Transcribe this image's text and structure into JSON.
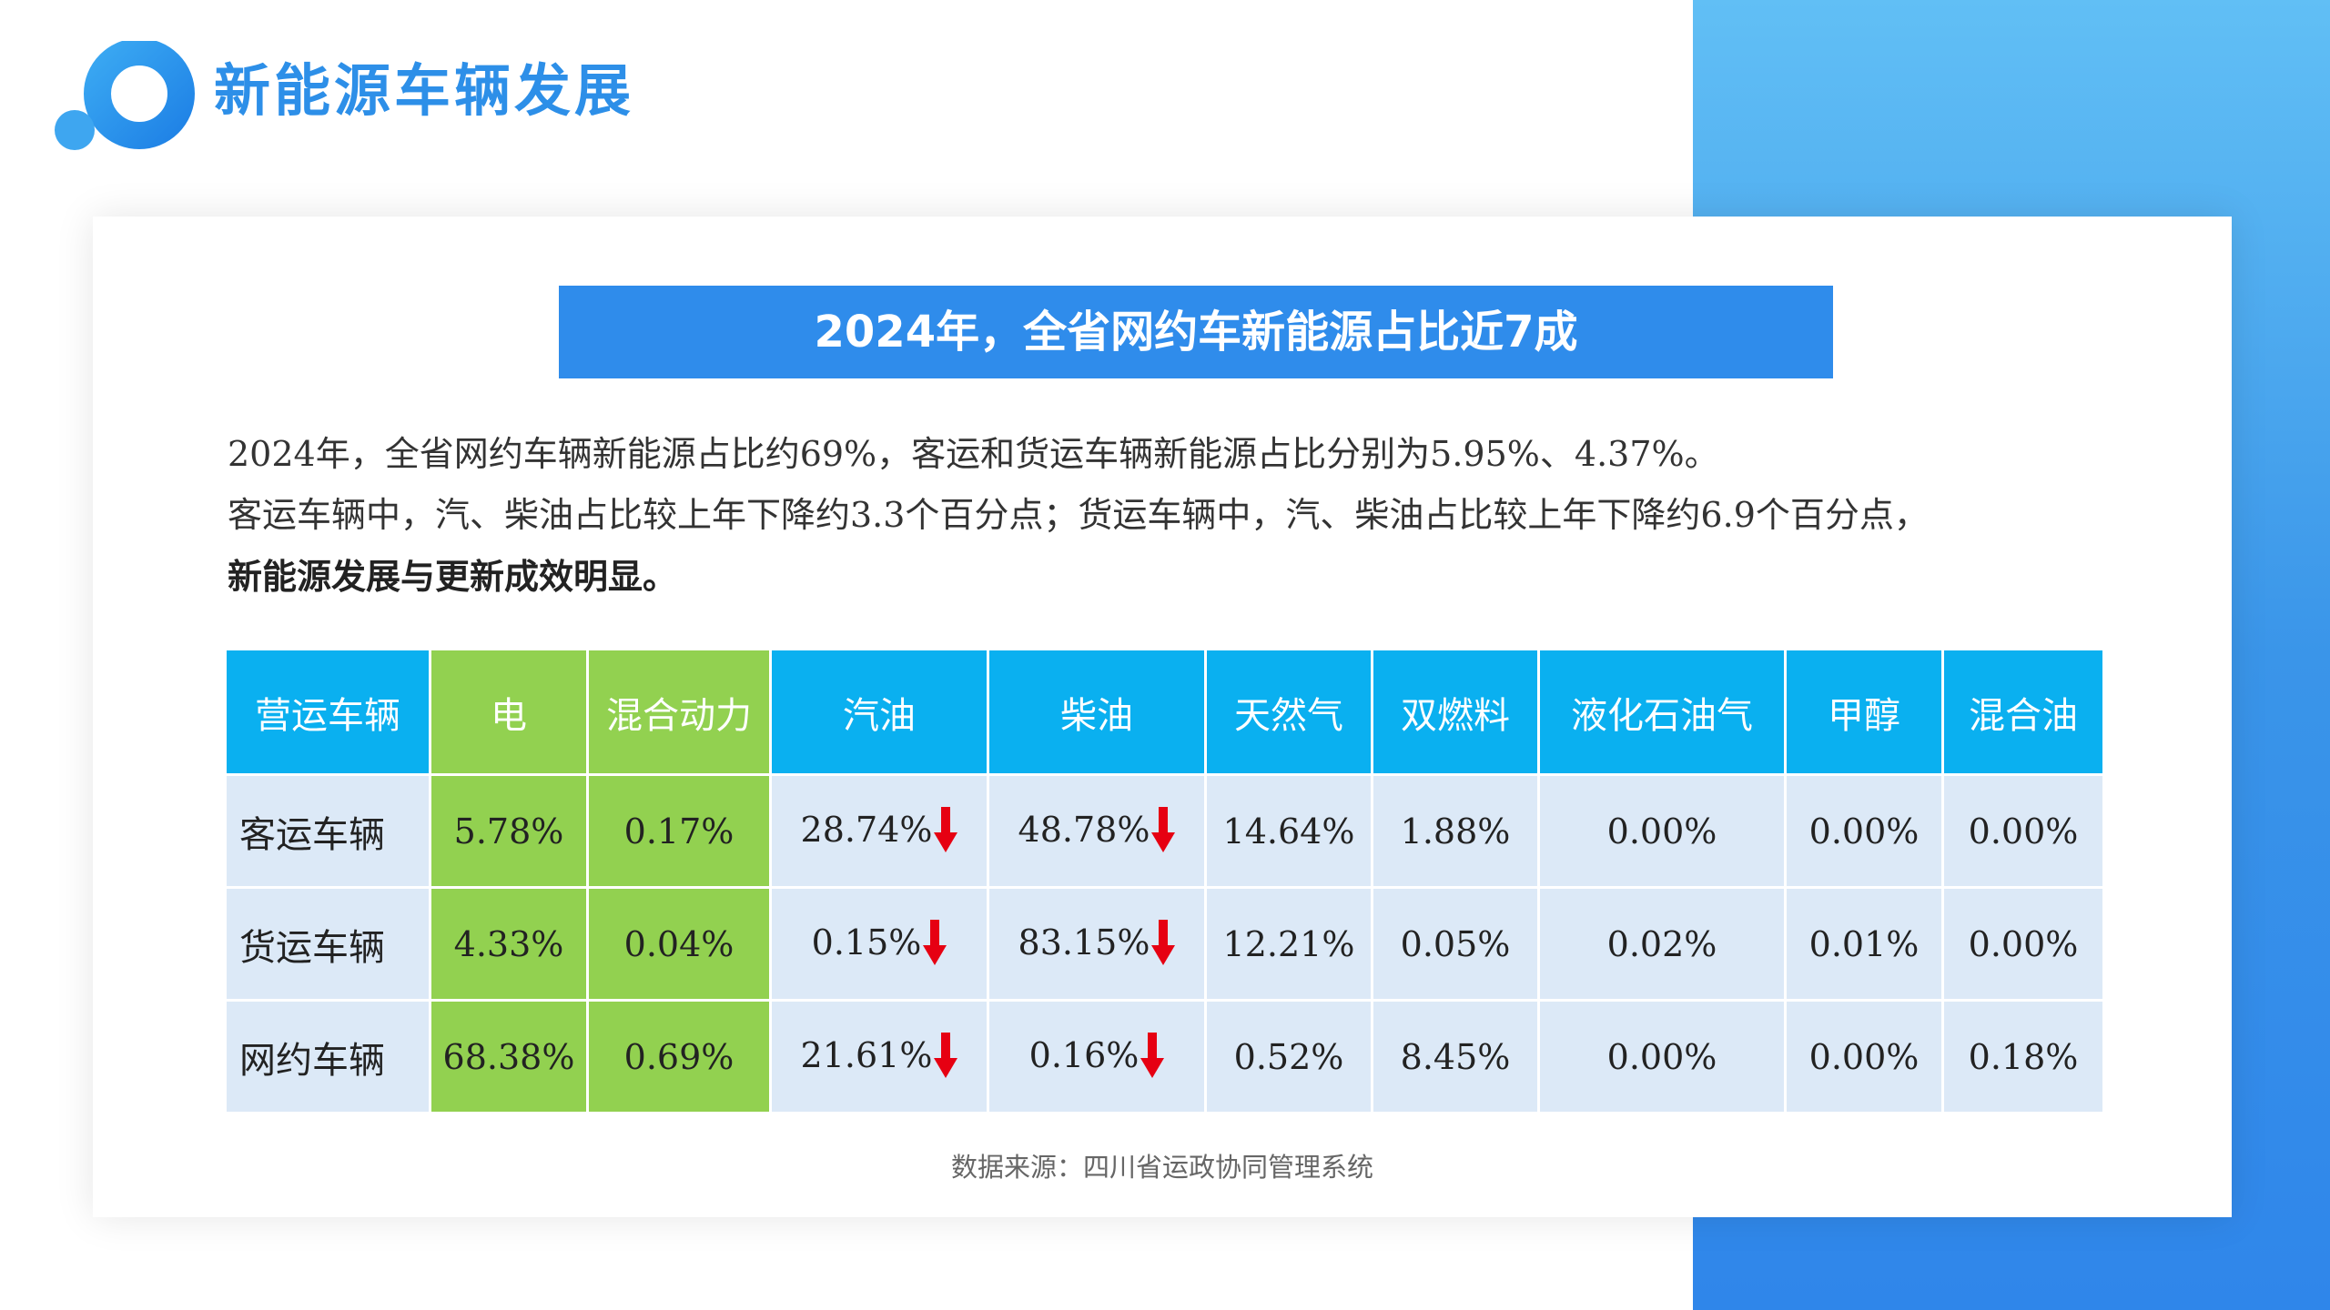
{
  "header": {
    "title": "新能源车辆发展"
  },
  "banner": {
    "text": "2024年，全省网约车新能源占比近7成"
  },
  "intro": {
    "line1": "2024年，全省网约车辆新能源占比约69%，客运和货运车辆新能源占比分别为5.95%、4.37%。",
    "line2": "客运车辆中，汽、柴油占比较上年下降约3.3个百分点；货运车辆中，汽、柴油占比较上年下降约6.9个百分点，",
    "line3": "新能源发展与更新成效明显。"
  },
  "table": {
    "headers": [
      "营运车辆",
      "电",
      "混合动力",
      "汽油",
      "柴油",
      "天然气",
      "双燃料",
      "液化石油气",
      "甲醇",
      "混合油"
    ],
    "rows": [
      {
        "label": "客运车辆",
        "electric": "5.78%",
        "hybrid": "0.17%",
        "gasoline": "28.74%",
        "diesel": "48.78%",
        "natural_gas": "14.64%",
        "dual_fuel": "1.88%",
        "lpg": "0.00%",
        "methanol": "0.00%",
        "mixed_oil": "0.00%"
      },
      {
        "label": "货运车辆",
        "electric": "4.33%",
        "hybrid": "0.04%",
        "gasoline": "0.15%",
        "diesel": "83.15%",
        "natural_gas": "12.21%",
        "dual_fuel": "0.05%",
        "lpg": "0.02%",
        "methanol": "0.01%",
        "mixed_oil": "0.00%"
      },
      {
        "label": "网约车辆",
        "electric": "68.38%",
        "hybrid": "0.69%",
        "gasoline": "21.61%",
        "diesel": "0.16%",
        "natural_gas": "0.52%",
        "dual_fuel": "8.45%",
        "lpg": "0.00%",
        "methanol": "0.00%",
        "mixed_oil": "0.18%"
      }
    ],
    "trend_icon": "down-arrow-icon"
  },
  "source": {
    "text": "数据来源：四川省运政协同管理系统"
  },
  "colors": {
    "accent_blue": "#2f8ceb",
    "header_cyan": "#0ab0f0",
    "highlight_green": "#92d150",
    "cell_bg": "#dce9f7",
    "arrow_red": "#e60012"
  }
}
